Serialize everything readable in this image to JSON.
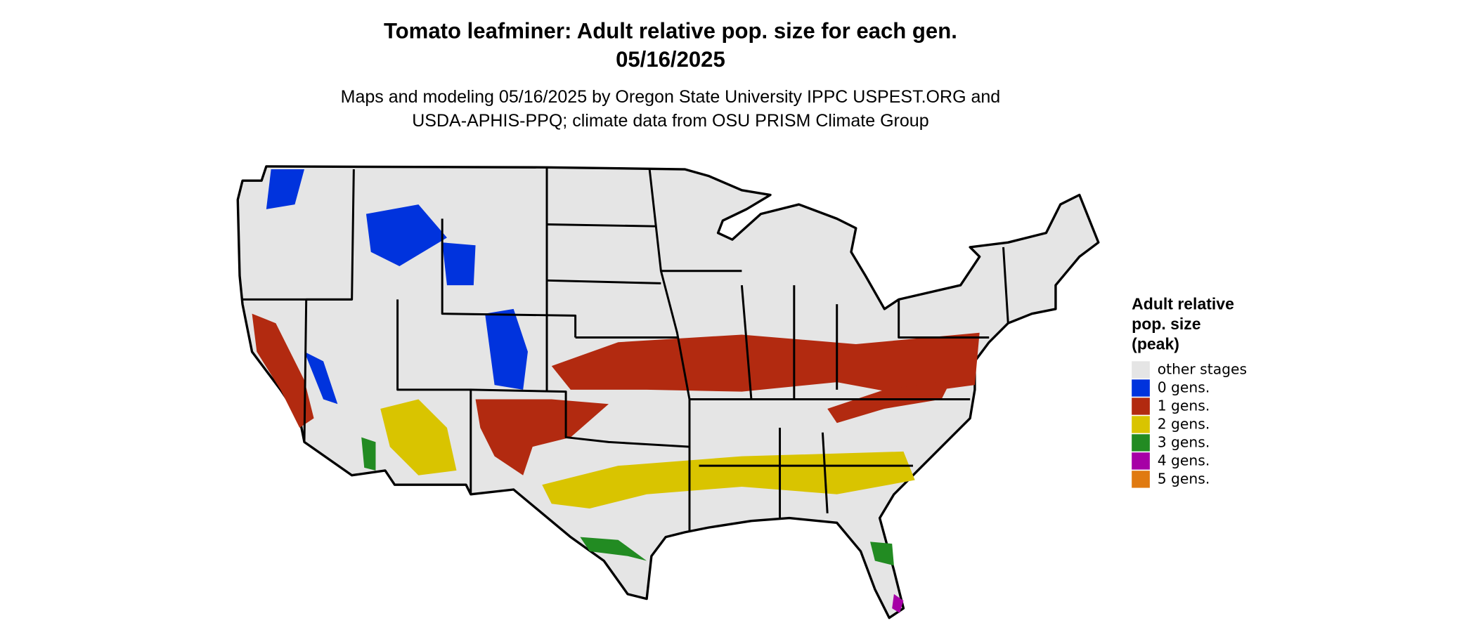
{
  "header": {
    "title": "Tomato leafminer: Adult relative pop. size for each gen.",
    "date": "05/16/2025",
    "subtitle_lines": [
      "Maps and modeling 05/16/2025 by Oregon State University IPPC USPEST.ORG and",
      "USDA-APHIS-PPQ; climate data from OSU PRISM Climate Group"
    ]
  },
  "legend": {
    "title_lines": [
      "Adult relative",
      "pop. size",
      "(peak)"
    ],
    "items": [
      {
        "label": "other stages",
        "color": "#e5e5e5"
      },
      {
        "label": "0 gens.",
        "color": "#0033dd"
      },
      {
        "label": "1 gens.",
        "color": "#b22a10"
      },
      {
        "label": "2 gens.",
        "color": "#d9c400"
      },
      {
        "label": "3 gens.",
        "color": "#228b22"
      },
      {
        "label": "4 gens.",
        "color": "#a600a6"
      },
      {
        "label": "5 gens.",
        "color": "#e07a10"
      }
    ]
  }
}
